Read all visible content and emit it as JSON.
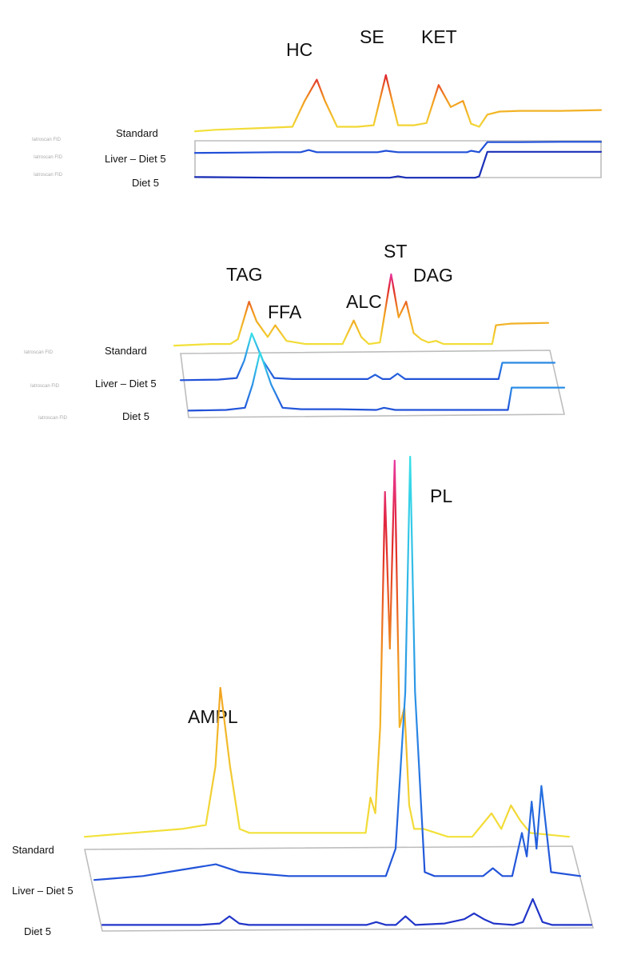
{
  "chart_data": [
    {
      "type": "line",
      "title": "",
      "peak_labels": [
        "HC",
        "SE",
        "KET"
      ],
      "trace_labels": [
        "Standard",
        "Liver – Diet 5",
        "Diet 5"
      ],
      "instrument_labels": [
        "Iatroscan FID",
        "Iatroscan FID",
        "Iatroscan FID"
      ],
      "series": [
        {
          "name": "Standard",
          "x": [
            0,
            5,
            10,
            15,
            20,
            24,
            27,
            30,
            32,
            35,
            40,
            44,
            47,
            50,
            54,
            57,
            60,
            63,
            66,
            68,
            70,
            72,
            75,
            80,
            90,
            100
          ],
          "y": [
            4,
            6,
            7,
            8,
            9,
            10,
            44,
            72,
            44,
            10,
            10,
            12,
            78,
            12,
            12,
            15,
            65,
            36,
            44,
            14,
            10,
            26,
            30,
            31,
            31,
            32
          ]
        },
        {
          "name": "Liver – Diet 5",
          "x": [
            0,
            10,
            20,
            26,
            28,
            30,
            40,
            45,
            47,
            50,
            60,
            67,
            68,
            70,
            72,
            80,
            90,
            100
          ],
          "y": [
            4,
            5,
            6,
            6,
            12,
            6,
            6,
            6,
            10,
            6,
            6,
            6,
            10,
            6,
            34,
            34,
            35,
            35
          ]
        },
        {
          "name": "Diet 5",
          "x": [
            0,
            20,
            25,
            40,
            48,
            50,
            52,
            60,
            69,
            70,
            72,
            80,
            90,
            100
          ],
          "y": [
            3,
            2,
            2,
            2,
            2,
            4,
            2,
            2,
            2,
            4,
            38,
            38,
            38,
            38
          ]
        }
      ],
      "colors": {
        "low": "#f2e23a",
        "mid": "#f29a1c",
        "high": "#e0242c",
        "trace_2": "#2150d8",
        "trace_3": "#1a2fb8",
        "step": "#2b8ee6",
        "frame": "#bdbdbd"
      }
    },
    {
      "type": "line",
      "title": "",
      "peak_labels": [
        "TAG",
        "FFA",
        "ALC",
        "ST",
        "DAG"
      ],
      "trace_labels": [
        "Standard",
        "Liver – Diet 5",
        "Diet 5"
      ],
      "instrument_labels": [
        "Iatroscan FID",
        "Iatroscan FID",
        "Iatroscan FID"
      ],
      "series": [
        {
          "name": "Standard",
          "x": [
            0,
            5,
            10,
            15,
            17,
            20,
            22,
            25,
            27,
            30,
            35,
            40,
            45,
            48,
            50,
            52,
            55,
            58,
            60,
            62,
            64,
            66,
            68,
            70,
            72,
            75,
            80,
            85,
            86,
            90,
            100
          ],
          "y": [
            4,
            5,
            6,
            6,
            12,
            60,
            35,
            15,
            30,
            10,
            6,
            6,
            6,
            36,
            15,
            6,
            8,
            95,
            40,
            60,
            20,
            12,
            8,
            10,
            6,
            6,
            6,
            6,
            30,
            32,
            33
          ]
        },
        {
          "name": "Liver – Diet 5",
          "x": [
            0,
            10,
            15,
            17,
            19,
            22,
            25,
            30,
            40,
            50,
            52,
            54,
            56,
            58,
            60,
            80,
            85,
            86,
            90,
            100
          ],
          "y": [
            4,
            5,
            8,
            40,
            90,
            40,
            8,
            6,
            6,
            6,
            14,
            6,
            6,
            16,
            6,
            6,
            6,
            36,
            36,
            36
          ]
        },
        {
          "name": "Diet 5",
          "x": [
            0,
            10,
            15,
            17,
            19,
            22,
            25,
            30,
            40,
            50,
            52,
            55,
            60,
            70,
            80,
            85,
            86,
            90,
            100
          ],
          "y": [
            4,
            5,
            8,
            40,
            85,
            40,
            8,
            6,
            6,
            5,
            8,
            5,
            5,
            5,
            5,
            5,
            36,
            36,
            36
          ]
        }
      ],
      "colors": {
        "low": "#f2e23a",
        "mid": "#f29a1c",
        "high": "#e0242c",
        "peak": "#e83aa0",
        "trace_2": "#2150d8",
        "trace_3": "#2a48c8",
        "highlight": "#37e0e8",
        "step": "#2b8ee6",
        "frame": "#bdbdbd"
      }
    },
    {
      "type": "line",
      "title": "",
      "peak_labels": [
        "AMPL",
        "PL"
      ],
      "trace_labels": [
        "Standard",
        "Liver – Diet 5",
        "Diet 5"
      ],
      "series": [
        {
          "name": "Standard",
          "x": [
            0,
            10,
            20,
            25,
            27,
            28,
            30,
            32,
            34,
            40,
            50,
            58,
            59,
            60,
            61,
            62,
            63,
            64,
            65,
            66,
            67,
            68,
            70,
            75,
            80,
            82,
            84,
            86,
            88,
            90,
            92,
            100
          ],
          "y": [
            2,
            3,
            4,
            5,
            20,
            40,
            20,
            4,
            3,
            3,
            3,
            3,
            12,
            8,
            30,
            90,
            50,
            98,
            30,
            35,
            10,
            4,
            4,
            2,
            2,
            5,
            8,
            4,
            10,
            6,
            3,
            2
          ]
        },
        {
          "name": "Liver – Diet 5",
          "x": [
            0,
            10,
            20,
            25,
            30,
            40,
            50,
            60,
            62,
            64,
            65,
            66,
            68,
            70,
            75,
            80,
            82,
            84,
            86,
            88,
            89,
            90,
            91,
            92,
            94,
            100
          ],
          "y": [
            2,
            3,
            5,
            6,
            4,
            3,
            3,
            3,
            10,
            50,
            110,
            50,
            4,
            3,
            3,
            3,
            5,
            3,
            3,
            14,
            8,
            22,
            10,
            26,
            4,
            3
          ]
        },
        {
          "name": "Diet 5",
          "x": [
            0,
            10,
            20,
            24,
            26,
            28,
            30,
            40,
            50,
            54,
            56,
            58,
            60,
            62,
            64,
            70,
            74,
            76,
            78,
            80,
            84,
            86,
            88,
            90,
            92,
            100
          ],
          "y": [
            2,
            2,
            2,
            3,
            8,
            3,
            2,
            2,
            2,
            2,
            4,
            2,
            2,
            8,
            2,
            3,
            6,
            10,
            6,
            3,
            2,
            4,
            20,
            4,
            2,
            2
          ]
        }
      ],
      "colors": {
        "low": "#f2e23a",
        "mid": "#f29a1c",
        "high": "#e0242c",
        "peak": "#e83aa0",
        "green": "#2ad84a",
        "cyan": "#37e0e8",
        "trace_2": "#2150d8",
        "trace_3": "#2135c8",
        "frame": "#bdbdbd"
      }
    }
  ]
}
